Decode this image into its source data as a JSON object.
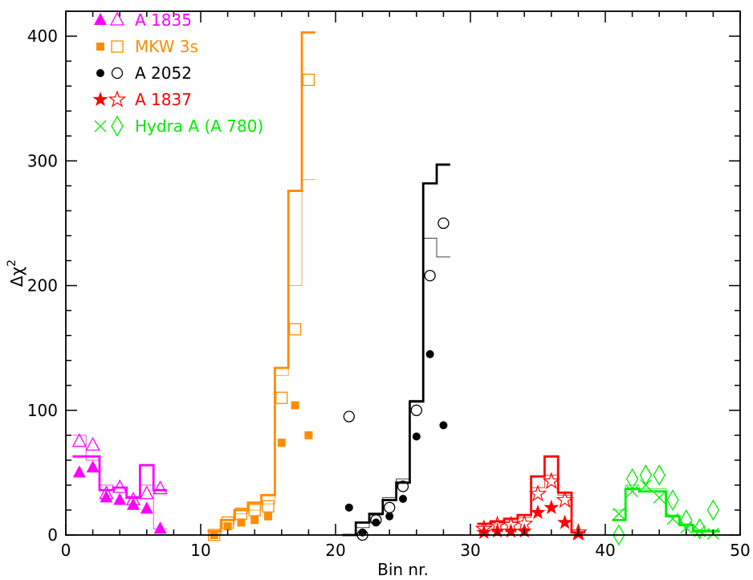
{
  "chart_data": {
    "type": "scatter",
    "xlabel": "Bin nr.",
    "ylabel": "Δχ",
    "ylabel_superscript": "2",
    "xlim": [
      0,
      50
    ],
    "ylim": [
      0,
      420
    ],
    "x_ticks": [
      0,
      10,
      20,
      30,
      40,
      50
    ],
    "y_ticks": [
      0,
      100,
      200,
      300,
      400
    ],
    "x_tick_labels": [
      "0",
      "10",
      "20",
      "30",
      "40",
      "50"
    ],
    "y_tick_labels": [
      "0",
      "100",
      "200",
      "300",
      "400"
    ],
    "grid": false,
    "legend_position": "top-left",
    "series": [
      {
        "name": "A 1835",
        "color": "#ff00ff",
        "filled_marker": "filled-triangle",
        "open_marker": "open-triangle",
        "filled_points": [
          [
            1,
            50
          ],
          [
            2,
            54
          ],
          [
            3,
            30
          ],
          [
            4,
            28
          ],
          [
            5,
            24
          ],
          [
            6,
            21
          ],
          [
            7,
            5
          ]
        ],
        "open_points": [
          [
            1,
            75
          ],
          [
            2,
            72
          ],
          [
            3,
            33
          ],
          [
            4,
            38
          ],
          [
            5,
            28
          ],
          [
            6,
            33
          ],
          [
            7,
            37
          ]
        ],
        "thick_steps": [
          [
            0.5,
            63
          ],
          [
            1.5,
            63
          ],
          [
            2.5,
            36
          ],
          [
            3.5,
            38
          ],
          [
            4.5,
            30
          ],
          [
            5.5,
            56
          ],
          [
            6.5,
            36
          ]
        ],
        "thin_steps": [
          [
            0.5,
            80
          ],
          [
            1.5,
            60
          ],
          [
            2.5,
            40
          ],
          [
            3.5,
            38
          ],
          [
            4.5,
            31
          ],
          [
            5.5,
            40
          ],
          [
            6.5,
            5
          ]
        ]
      },
      {
        "name": "MKW 3s",
        "color": "#ff8c00",
        "filled_marker": "filled-square",
        "open_marker": "open-square",
        "filled_points": [
          [
            11,
            0
          ],
          [
            12,
            7
          ],
          [
            13,
            10
          ],
          [
            14,
            12
          ],
          [
            15,
            15
          ],
          [
            16,
            74
          ],
          [
            17,
            104
          ],
          [
            18,
            80
          ]
        ],
        "open_points": [
          [
            11,
            0
          ],
          [
            12,
            10
          ],
          [
            13,
            17
          ],
          [
            14,
            20
          ],
          [
            15,
            23
          ],
          [
            16,
            110
          ],
          [
            17,
            165
          ],
          [
            18,
            365
          ]
        ],
        "thick_steps": [
          [
            10.5,
            3
          ],
          [
            11.5,
            12
          ],
          [
            12.5,
            20
          ],
          [
            13.5,
            26
          ],
          [
            14.5,
            32
          ],
          [
            15.5,
            134
          ],
          [
            16.5,
            276
          ],
          [
            17.5,
            403
          ]
        ],
        "thin_steps": [
          [
            10.5,
            0
          ],
          [
            11.5,
            9
          ],
          [
            12.5,
            17
          ],
          [
            13.5,
            20
          ],
          [
            14.5,
            25
          ],
          [
            15.5,
            128
          ],
          [
            16.5,
            200
          ],
          [
            17.5,
            285
          ]
        ]
      },
      {
        "name": "A 2052",
        "color": "#000000",
        "filled_marker": "filled-circle",
        "open_marker": "open-circle",
        "filled_points": [
          [
            21,
            22
          ],
          [
            22,
            2
          ],
          [
            23,
            10
          ],
          [
            24,
            15
          ],
          [
            25,
            29
          ],
          [
            26,
            79
          ],
          [
            27,
            145
          ],
          [
            28,
            88
          ]
        ],
        "open_points": [
          [
            21,
            95
          ],
          [
            22,
            0
          ],
          [
            23,
            12
          ],
          [
            24,
            22
          ],
          [
            25,
            39
          ],
          [
            26,
            100
          ],
          [
            27,
            208
          ],
          [
            28,
            250
          ]
        ],
        "thick_steps": [
          [
            20.5,
            0
          ],
          [
            21.5,
            10
          ],
          [
            22.5,
            17
          ],
          [
            23.5,
            28
          ],
          [
            24.5,
            42
          ],
          [
            25.5,
            107
          ],
          [
            26.5,
            282
          ],
          [
            27.5,
            297
          ]
        ],
        "thin_steps": [
          [
            20.5,
            0
          ],
          [
            21.5,
            6
          ],
          [
            22.5,
            16
          ],
          [
            23.5,
            30
          ],
          [
            24.5,
            45
          ],
          [
            25.5,
            108
          ],
          [
            26.5,
            238
          ],
          [
            27.5,
            223
          ]
        ]
      },
      {
        "name": "A 1837",
        "color": "#ff0000",
        "filled_marker": "filled-star",
        "open_marker": "open-star",
        "filled_points": [
          [
            31,
            2
          ],
          [
            32,
            3
          ],
          [
            33,
            3
          ],
          [
            34,
            3
          ],
          [
            35,
            18
          ],
          [
            36,
            22
          ],
          [
            37,
            10
          ],
          [
            38,
            1
          ]
        ],
        "open_points": [
          [
            31,
            5
          ],
          [
            32,
            8
          ],
          [
            33,
            8
          ],
          [
            34,
            9
          ],
          [
            35,
            33
          ],
          [
            36,
            43
          ],
          [
            37,
            28
          ],
          [
            38,
            2
          ]
        ],
        "thick_steps": [
          [
            30.5,
            9
          ],
          [
            31.5,
            11
          ],
          [
            32.5,
            13
          ],
          [
            33.5,
            16
          ],
          [
            34.5,
            47
          ],
          [
            35.5,
            63
          ],
          [
            36.5,
            34
          ],
          [
            37.5,
            2
          ]
        ],
        "thin_steps": [
          [
            30.5,
            7
          ],
          [
            31.5,
            9
          ],
          [
            32.5,
            11
          ],
          [
            33.5,
            14
          ],
          [
            34.5,
            38
          ],
          [
            35.5,
            48
          ],
          [
            36.5,
            32
          ],
          [
            37.5,
            2
          ]
        ]
      },
      {
        "name": "Hydra A (A 780)",
        "color": "#00ee00",
        "filled_marker": "cross",
        "open_marker": "open-diamond",
        "filled_points": [
          [
            41,
            17
          ],
          [
            42,
            35
          ],
          [
            43,
            40
          ],
          [
            44,
            30
          ],
          [
            45,
            13
          ],
          [
            46,
            6
          ],
          [
            47,
            3
          ],
          [
            48,
            1
          ]
        ],
        "open_points": [
          [
            41,
            0
          ],
          [
            42,
            45
          ],
          [
            43,
            48
          ],
          [
            44,
            48
          ],
          [
            45,
            28
          ],
          [
            46,
            12
          ],
          [
            47,
            5
          ],
          [
            48,
            20
          ]
        ],
        "thick_steps": [
          [
            40.5,
            12
          ],
          [
            41.5,
            37
          ],
          [
            42.5,
            35
          ],
          [
            43.5,
            35
          ],
          [
            44.5,
            15
          ],
          [
            45.5,
            8
          ],
          [
            46.5,
            3
          ],
          [
            47.5,
            3
          ]
        ],
        "thin_steps": [
          [
            40.5,
            20
          ],
          [
            41.5,
            40
          ],
          [
            42.5,
            37
          ],
          [
            43.5,
            37
          ],
          [
            44.5,
            16
          ],
          [
            45.5,
            9
          ],
          [
            46.5,
            4
          ],
          [
            47.5,
            4
          ]
        ]
      }
    ]
  }
}
